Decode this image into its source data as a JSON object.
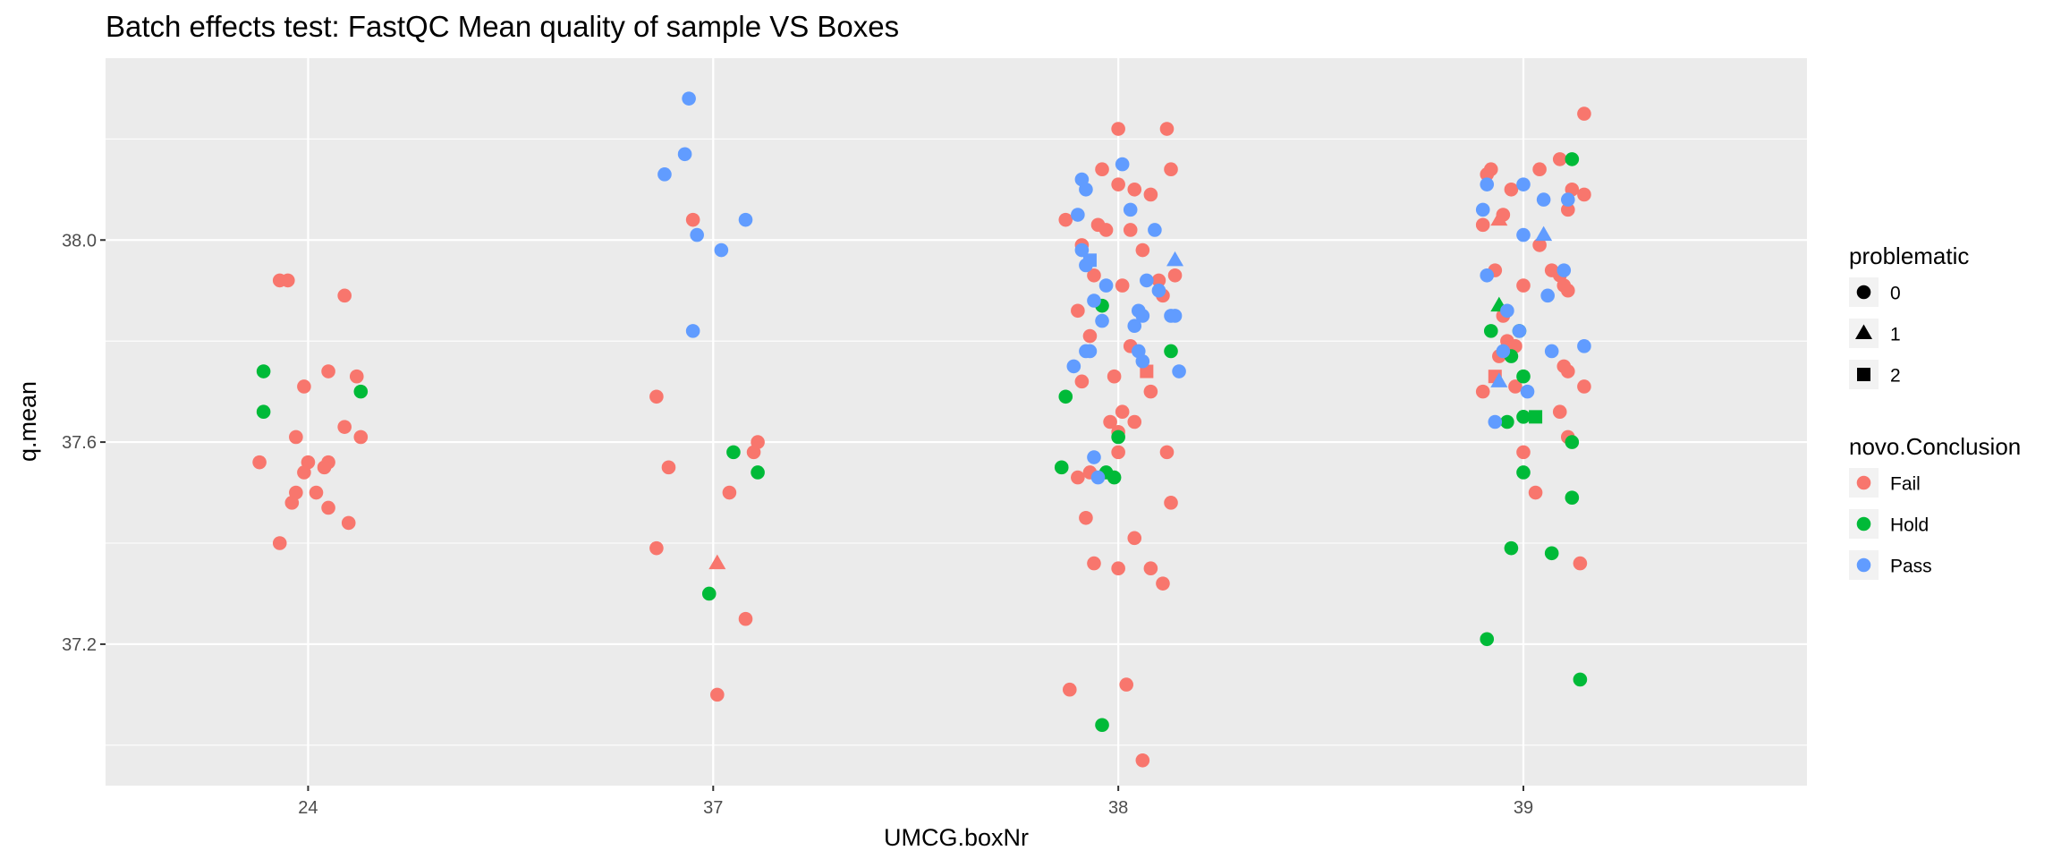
{
  "chart_data": {
    "type": "scatter",
    "title": "Batch effects test: FastQC Mean quality of sample VS Boxes",
    "xlabel": "UMCG.boxNr",
    "ylabel": "q.mean",
    "categories": [
      "24",
      "37",
      "38",
      "39"
    ],
    "y_ticks": [
      "37.2",
      "37.6",
      "38.0"
    ],
    "ylim": [
      36.92,
      38.36
    ],
    "grid": true,
    "legend_placement": "right",
    "colors": {
      "Fail": "#F8766D",
      "Hold": "#00BA38",
      "Pass": "#619CFF",
      "panel": "#EBEBEB",
      "grid": "#FFFFFF"
    },
    "legends": [
      {
        "title": "problematic",
        "type": "shape",
        "entries": [
          {
            "label": "0",
            "shape": "circle"
          },
          {
            "label": "1",
            "shape": "triangle"
          },
          {
            "label": "2",
            "shape": "square"
          }
        ]
      },
      {
        "title": "novo.Conclusion",
        "type": "color",
        "entries": [
          {
            "label": "Fail",
            "color": "#F8766D"
          },
          {
            "label": "Hold",
            "color": "#00BA38"
          },
          {
            "label": "Pass",
            "color": "#619CFF"
          }
        ]
      }
    ],
    "series": [
      {
        "name": "Fail",
        "color": "#F8766D",
        "points": [
          [
            "24",
            -0.07,
            37.92,
            0
          ],
          [
            "24",
            -0.05,
            37.92,
            0
          ],
          [
            "24",
            0.09,
            37.89,
            0
          ],
          [
            "24",
            -0.01,
            37.71,
            0
          ],
          [
            "24",
            0.05,
            37.74,
            0
          ],
          [
            "24",
            0.12,
            37.73,
            0
          ],
          [
            "24",
            -0.03,
            37.61,
            0
          ],
          [
            "24",
            0.09,
            37.63,
            0
          ],
          [
            "24",
            0.13,
            37.61,
            0
          ],
          [
            "24",
            -0.12,
            37.56,
            0
          ],
          [
            "24",
            0.0,
            37.56,
            0
          ],
          [
            "24",
            0.05,
            37.56,
            0
          ],
          [
            "24",
            -0.01,
            37.54,
            0
          ],
          [
            "24",
            0.04,
            37.55,
            0
          ],
          [
            "24",
            -0.03,
            37.5,
            0
          ],
          [
            "24",
            0.02,
            37.5,
            0
          ],
          [
            "24",
            -0.04,
            37.48,
            0
          ],
          [
            "24",
            0.05,
            37.47,
            0
          ],
          [
            "24",
            0.1,
            37.44,
            0
          ],
          [
            "24",
            -0.07,
            37.4,
            0
          ],
          [
            "37",
            -0.14,
            37.69,
            0
          ],
          [
            "37",
            -0.11,
            37.55,
            0
          ],
          [
            "37",
            -0.14,
            37.39,
            0
          ],
          [
            "37",
            0.04,
            37.5,
            0
          ],
          [
            "37",
            0.1,
            37.58,
            0
          ],
          [
            "37",
            0.11,
            37.6,
            0
          ],
          [
            "37",
            0.08,
            37.25,
            0
          ],
          [
            "37",
            0.01,
            37.1,
            0
          ],
          [
            "37",
            -0.05,
            38.04,
            0
          ],
          [
            "37",
            0.01,
            37.36,
            1
          ],
          [
            "38",
            -0.13,
            38.04,
            0
          ],
          [
            "38",
            -0.04,
            38.14,
            0
          ],
          [
            "38",
            0.0,
            38.22,
            0
          ],
          [
            "38",
            0.12,
            38.22,
            0
          ],
          [
            "38",
            0.0,
            38.11,
            0
          ],
          [
            "38",
            0.04,
            38.1,
            0
          ],
          [
            "38",
            0.08,
            38.09,
            0
          ],
          [
            "38",
            0.13,
            38.14,
            0
          ],
          [
            "38",
            -0.05,
            38.03,
            0
          ],
          [
            "38",
            -0.03,
            38.02,
            0
          ],
          [
            "38",
            0.03,
            38.02,
            0
          ],
          [
            "38",
            -0.09,
            37.99,
            0
          ],
          [
            "38",
            0.06,
            37.98,
            0
          ],
          [
            "38",
            -0.06,
            37.93,
            0
          ],
          [
            "38",
            0.01,
            37.91,
            0
          ],
          [
            "38",
            0.1,
            37.92,
            0
          ],
          [
            "38",
            0.14,
            37.93,
            0
          ],
          [
            "38",
            -0.1,
            37.86,
            0
          ],
          [
            "38",
            0.11,
            37.89,
            0
          ],
          [
            "38",
            -0.07,
            37.81,
            0
          ],
          [
            "38",
            0.03,
            37.79,
            0
          ],
          [
            "38",
            -0.01,
            37.73,
            0
          ],
          [
            "38",
            -0.09,
            37.72,
            0
          ],
          [
            "38",
            0.08,
            37.7,
            0
          ],
          [
            "38",
            0.01,
            37.66,
            0
          ],
          [
            "38",
            0.04,
            37.64,
            0
          ],
          [
            "38",
            -0.02,
            37.64,
            0
          ],
          [
            "38",
            0.0,
            37.62,
            0
          ],
          [
            "38",
            0.0,
            37.58,
            0
          ],
          [
            "38",
            0.12,
            37.58,
            0
          ],
          [
            "38",
            -0.07,
            37.54,
            0
          ],
          [
            "38",
            -0.1,
            37.53,
            0
          ],
          [
            "38",
            -0.08,
            37.45,
            0
          ],
          [
            "38",
            0.13,
            37.48,
            0
          ],
          [
            "38",
            0.04,
            37.41,
            0
          ],
          [
            "38",
            -0.06,
            37.36,
            0
          ],
          [
            "38",
            0.0,
            37.35,
            0
          ],
          [
            "38",
            0.08,
            37.35,
            0
          ],
          [
            "38",
            0.11,
            37.32,
            0
          ],
          [
            "38",
            -0.12,
            37.11,
            0
          ],
          [
            "38",
            0.02,
            37.12,
            0
          ],
          [
            "38",
            0.06,
            36.97,
            0
          ],
          [
            "38",
            0.07,
            37.74,
            2
          ],
          [
            "39",
            -0.09,
            38.13,
            0
          ],
          [
            "39",
            -0.08,
            38.14,
            0
          ],
          [
            "39",
            0.04,
            38.14,
            0
          ],
          [
            "39",
            0.09,
            38.16,
            0
          ],
          [
            "39",
            0.15,
            38.25,
            0
          ],
          [
            "39",
            0.12,
            38.1,
            0
          ],
          [
            "39",
            0.15,
            38.09,
            0
          ],
          [
            "39",
            -0.03,
            38.1,
            0
          ],
          [
            "39",
            -0.05,
            38.05,
            0
          ],
          [
            "39",
            -0.1,
            38.03,
            0
          ],
          [
            "39",
            0.11,
            38.06,
            0
          ],
          [
            "39",
            0.04,
            37.99,
            0
          ],
          [
            "39",
            0.07,
            37.94,
            0
          ],
          [
            "39",
            0.09,
            37.93,
            0
          ],
          [
            "39",
            0.1,
            37.91,
            0
          ],
          [
            "39",
            0.11,
            37.9,
            0
          ],
          [
            "39",
            -0.07,
            37.94,
            0
          ],
          [
            "39",
            0.0,
            37.91,
            0
          ],
          [
            "39",
            -0.05,
            37.85,
            0
          ],
          [
            "39",
            -0.04,
            37.8,
            0
          ],
          [
            "39",
            -0.06,
            37.77,
            0
          ],
          [
            "39",
            -0.02,
            37.79,
            0
          ],
          [
            "39",
            0.11,
            37.74,
            0
          ],
          [
            "39",
            0.1,
            37.75,
            0
          ],
          [
            "39",
            -0.02,
            37.71,
            0
          ],
          [
            "39",
            -0.1,
            37.7,
            0
          ],
          [
            "39",
            0.15,
            37.71,
            0
          ],
          [
            "39",
            0.09,
            37.66,
            0
          ],
          [
            "39",
            0.11,
            37.61,
            0
          ],
          [
            "39",
            0.0,
            37.58,
            0
          ],
          [
            "39",
            0.03,
            37.5,
            0
          ],
          [
            "39",
            0.14,
            37.36,
            0
          ],
          [
            "39",
            -0.06,
            38.04,
            1
          ],
          [
            "39",
            -0.07,
            37.73,
            2
          ]
        ]
      },
      {
        "name": "Hold",
        "color": "#00BA38",
        "points": [
          [
            "24",
            -0.11,
            37.74,
            0
          ],
          [
            "24",
            -0.11,
            37.66,
            0
          ],
          [
            "24",
            0.13,
            37.7,
            0
          ],
          [
            "37",
            0.05,
            37.58,
            0
          ],
          [
            "37",
            0.11,
            37.54,
            0
          ],
          [
            "37",
            -0.01,
            37.3,
            0
          ],
          [
            "38",
            -0.13,
            37.69,
            0
          ],
          [
            "38",
            -0.04,
            37.87,
            0
          ],
          [
            "38",
            0.13,
            37.78,
            0
          ],
          [
            "38",
            0.0,
            37.61,
            0
          ],
          [
            "38",
            -0.14,
            37.55,
            0
          ],
          [
            "38",
            -0.03,
            37.54,
            0
          ],
          [
            "38",
            -0.01,
            37.53,
            0
          ],
          [
            "38",
            -0.04,
            37.04,
            0
          ],
          [
            "39",
            0.12,
            38.16,
            0
          ],
          [
            "39",
            -0.08,
            37.82,
            0
          ],
          [
            "39",
            -0.03,
            37.77,
            0
          ],
          [
            "39",
            -0.01,
            37.82,
            0
          ],
          [
            "39",
            0.0,
            37.73,
            0
          ],
          [
            "39",
            -0.04,
            37.64,
            0
          ],
          [
            "39",
            0.0,
            37.65,
            0
          ],
          [
            "39",
            0.12,
            37.6,
            0
          ],
          [
            "39",
            0.0,
            37.54,
            0
          ],
          [
            "39",
            0.12,
            37.49,
            0
          ],
          [
            "39",
            -0.03,
            37.39,
            0
          ],
          [
            "39",
            0.07,
            37.38,
            0
          ],
          [
            "39",
            -0.09,
            37.21,
            0
          ],
          [
            "39",
            0.14,
            37.13,
            0
          ],
          [
            "39",
            -0.06,
            37.87,
            1
          ],
          [
            "39",
            0.03,
            37.65,
            2
          ]
        ]
      },
      {
        "name": "Pass",
        "color": "#619CFF",
        "points": [
          [
            "37",
            -0.12,
            38.13,
            0
          ],
          [
            "37",
            -0.06,
            38.28,
            0
          ],
          [
            "37",
            -0.07,
            38.17,
            0
          ],
          [
            "37",
            -0.04,
            38.01,
            0
          ],
          [
            "37",
            0.08,
            38.04,
            0
          ],
          [
            "37",
            0.02,
            37.98,
            0
          ],
          [
            "37",
            -0.05,
            37.82,
            0
          ],
          [
            "38",
            -0.09,
            38.12,
            0
          ],
          [
            "38",
            -0.08,
            38.1,
            0
          ],
          [
            "38",
            0.01,
            38.15,
            0
          ],
          [
            "38",
            0.03,
            38.06,
            0
          ],
          [
            "38",
            -0.1,
            38.05,
            0
          ],
          [
            "38",
            0.09,
            38.02,
            0
          ],
          [
            "38",
            -0.09,
            37.98,
            0
          ],
          [
            "38",
            -0.08,
            37.95,
            0
          ],
          [
            "38",
            0.07,
            37.92,
            0
          ],
          [
            "38",
            0.1,
            37.9,
            0
          ],
          [
            "38",
            -0.03,
            37.91,
            0
          ],
          [
            "38",
            -0.06,
            37.88,
            0
          ],
          [
            "38",
            0.05,
            37.86,
            0
          ],
          [
            "38",
            0.06,
            37.85,
            0
          ],
          [
            "38",
            0.13,
            37.85,
            0
          ],
          [
            "38",
            0.14,
            37.85,
            0
          ],
          [
            "38",
            -0.04,
            37.84,
            0
          ],
          [
            "38",
            0.04,
            37.83,
            0
          ],
          [
            "38",
            -0.08,
            37.78,
            0
          ],
          [
            "38",
            -0.07,
            37.78,
            0
          ],
          [
            "38",
            -0.11,
            37.75,
            0
          ],
          [
            "38",
            0.05,
            37.78,
            0
          ],
          [
            "38",
            0.06,
            37.76,
            0
          ],
          [
            "38",
            0.15,
            37.74,
            0
          ],
          [
            "38",
            -0.06,
            37.57,
            0
          ],
          [
            "38",
            -0.05,
            37.53,
            0
          ],
          [
            "38",
            0.14,
            37.96,
            1
          ],
          [
            "38",
            -0.07,
            37.96,
            2
          ],
          [
            "39",
            -0.09,
            38.11,
            0
          ],
          [
            "39",
            0.0,
            38.11,
            0
          ],
          [
            "39",
            0.05,
            38.08,
            0
          ],
          [
            "39",
            0.11,
            38.08,
            0
          ],
          [
            "39",
            -0.1,
            38.06,
            0
          ],
          [
            "39",
            0.0,
            38.01,
            0
          ],
          [
            "39",
            -0.09,
            37.93,
            0
          ],
          [
            "39",
            0.1,
            37.94,
            0
          ],
          [
            "39",
            0.06,
            37.89,
            0
          ],
          [
            "39",
            -0.04,
            37.86,
            0
          ],
          [
            "39",
            -0.01,
            37.82,
            0
          ],
          [
            "39",
            0.15,
            37.79,
            0
          ],
          [
            "39",
            -0.05,
            37.78,
            0
          ],
          [
            "39",
            0.07,
            37.78,
            0
          ],
          [
            "39",
            0.01,
            37.7,
            0
          ],
          [
            "39",
            -0.07,
            37.64,
            0
          ],
          [
            "39",
            0.05,
            38.01,
            1
          ],
          [
            "39",
            -0.06,
            37.72,
            1
          ]
        ]
      }
    ]
  }
}
